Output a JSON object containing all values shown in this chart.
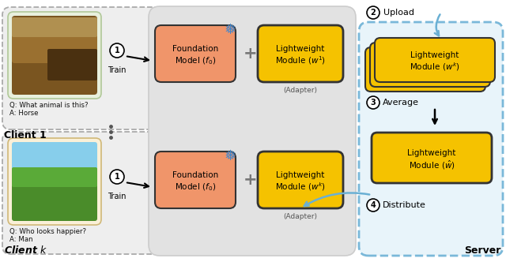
{
  "bg_color": "#ffffff",
  "foundation_color": "#f0956a",
  "lightweight_color": "#f5c200",
  "lightweight_edge": "#333333",
  "foundation_edge": "#333333",
  "client_box_color": "#eeeeee",
  "client_box_edge": "#aaaaaa",
  "middle_box_color": "#e2e2e2",
  "middle_box_edge": "#cccccc",
  "server_box_color": "#e8f4fa",
  "server_box_edge": "#7ab8d9",
  "img1_bg": "#e8f0dd",
  "img1_edge": "#b0c898",
  "imgk_bg": "#faf0d8",
  "imgk_edge": "#d0b878",
  "snowflake_color": "#4488cc",
  "plus_color": "#777777",
  "arrow_color": "#222222",
  "upload_arrow_color": "#6ab0d4",
  "dots_color": "#555555",
  "text_color": "#111111",
  "title1": "Client 1",
  "titlek": "Client $k$",
  "server_label": "Server",
  "q1": "Q: What animal is this?",
  "a1": "A: Horse",
  "qk": "Q: Who looks happier?",
  "ak": "A: Man",
  "adapter_label": "(Adapter)",
  "train_label": "Train",
  "upload_label": "Upload",
  "average_label": "Average",
  "distribute_label": "Distribute",
  "fm_line1": "Foundation",
  "fm_line2": "Model ($f_0$)",
  "lm1_line1": "Lightweight",
  "lm1_line2": "Module ($w^1$)",
  "lmk_line1": "Lightweight",
  "lmk_line2": "Module ($w^k$)",
  "lmavg_line1": "Lightweight",
  "lmavg_line2": "Module ($\\hat{w}$)",
  "snowflake": "❅"
}
